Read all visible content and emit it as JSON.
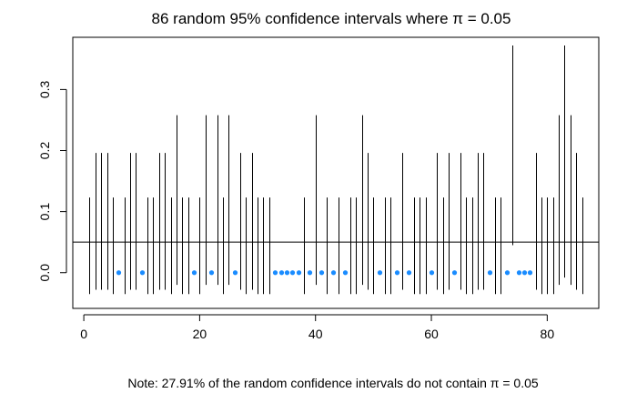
{
  "chart_data": {
    "type": "interval",
    "title": "86 random 95% confidence intervals where π = 0.05",
    "note": "Note: 27.91% of the random confidence intervals do not contain π = 0.05",
    "xlabel": "",
    "ylabel": "",
    "xlim": [
      -1.9,
      88.9
    ],
    "ylim": [
      -0.0585,
      0.3855
    ],
    "x_ticks": [
      {
        "value": 0,
        "label": "0"
      },
      {
        "value": 20,
        "label": "20"
      },
      {
        "value": 40,
        "label": "40"
      },
      {
        "value": 60,
        "label": "60"
      },
      {
        "value": 80,
        "label": "80"
      }
    ],
    "y_ticks": [
      {
        "value": 0.0,
        "label": "0.0"
      },
      {
        "value": 0.1,
        "label": "0.1"
      },
      {
        "value": 0.2,
        "label": "0.2"
      },
      {
        "value": 0.3,
        "label": "0.3"
      }
    ],
    "reference_line": 0.05,
    "grid": false,
    "interval_levels": {
      "A": [
        -0.035,
        0.123
      ],
      "B": [
        -0.028,
        0.196
      ],
      "C": [
        -0.02,
        0.258
      ],
      "D": [
        0.045,
        0.372
      ],
      "E": [
        -0.008,
        0.372
      ],
      "F": [
        -0.02,
        0.258
      ]
    },
    "intervals": [
      {
        "x": 1,
        "lvl": "A"
      },
      {
        "x": 2,
        "lvl": "B"
      },
      {
        "x": 3,
        "lvl": "B"
      },
      {
        "x": 4,
        "lvl": "B"
      },
      {
        "x": 5,
        "lvl": "A"
      },
      {
        "x": 6,
        "lvl": "Z"
      },
      {
        "x": 7,
        "lvl": "A"
      },
      {
        "x": 8,
        "lvl": "B"
      },
      {
        "x": 9,
        "lvl": "B"
      },
      {
        "x": 10,
        "lvl": "Z"
      },
      {
        "x": 11,
        "lvl": "A"
      },
      {
        "x": 12,
        "lvl": "A"
      },
      {
        "x": 13,
        "lvl": "B"
      },
      {
        "x": 14,
        "lvl": "B"
      },
      {
        "x": 15,
        "lvl": "A"
      },
      {
        "x": 16,
        "lvl": "C"
      },
      {
        "x": 17,
        "lvl": "A"
      },
      {
        "x": 18,
        "lvl": "A"
      },
      {
        "x": 19,
        "lvl": "Z"
      },
      {
        "x": 20,
        "lvl": "A"
      },
      {
        "x": 21,
        "lvl": "C"
      },
      {
        "x": 22,
        "lvl": "Z"
      },
      {
        "x": 23,
        "lvl": "C"
      },
      {
        "x": 24,
        "lvl": "A"
      },
      {
        "x": 25,
        "lvl": "C"
      },
      {
        "x": 26,
        "lvl": "Z"
      },
      {
        "x": 27,
        "lvl": "B"
      },
      {
        "x": 28,
        "lvl": "A"
      },
      {
        "x": 29,
        "lvl": "B"
      },
      {
        "x": 30,
        "lvl": "A"
      },
      {
        "x": 31,
        "lvl": "A"
      },
      {
        "x": 32,
        "lvl": "A"
      },
      {
        "x": 33,
        "lvl": "Z"
      },
      {
        "x": 34,
        "lvl": "Z"
      },
      {
        "x": 35,
        "lvl": "Z"
      },
      {
        "x": 36,
        "lvl": "Z"
      },
      {
        "x": 37,
        "lvl": "Z"
      },
      {
        "x": 38,
        "lvl": "A"
      },
      {
        "x": 39,
        "lvl": "Z"
      },
      {
        "x": 40,
        "lvl": "C"
      },
      {
        "x": 41,
        "lvl": "Z"
      },
      {
        "x": 42,
        "lvl": "A"
      },
      {
        "x": 43,
        "lvl": "Z"
      },
      {
        "x": 44,
        "lvl": "A"
      },
      {
        "x": 45,
        "lvl": "Z"
      },
      {
        "x": 46,
        "lvl": "A"
      },
      {
        "x": 47,
        "lvl": "A"
      },
      {
        "x": 48,
        "lvl": "C"
      },
      {
        "x": 49,
        "lvl": "B"
      },
      {
        "x": 50,
        "lvl": "A"
      },
      {
        "x": 51,
        "lvl": "Z"
      },
      {
        "x": 52,
        "lvl": "A"
      },
      {
        "x": 53,
        "lvl": "A"
      },
      {
        "x": 54,
        "lvl": "Z"
      },
      {
        "x": 55,
        "lvl": "B"
      },
      {
        "x": 56,
        "lvl": "Z"
      },
      {
        "x": 57,
        "lvl": "A"
      },
      {
        "x": 58,
        "lvl": "A"
      },
      {
        "x": 59,
        "lvl": "A"
      },
      {
        "x": 60,
        "lvl": "Z"
      },
      {
        "x": 61,
        "lvl": "B"
      },
      {
        "x": 62,
        "lvl": "A"
      },
      {
        "x": 63,
        "lvl": "B"
      },
      {
        "x": 64,
        "lvl": "Z"
      },
      {
        "x": 65,
        "lvl": "B"
      },
      {
        "x": 66,
        "lvl": "A"
      },
      {
        "x": 67,
        "lvl": "A"
      },
      {
        "x": 68,
        "lvl": "B"
      },
      {
        "x": 69,
        "lvl": "B"
      },
      {
        "x": 70,
        "lvl": "Z"
      },
      {
        "x": 71,
        "lvl": "A"
      },
      {
        "x": 72,
        "lvl": "A"
      },
      {
        "x": 73,
        "lvl": "Z"
      },
      {
        "x": 74,
        "lvl": "D"
      },
      {
        "x": 75,
        "lvl": "Z"
      },
      {
        "x": 76,
        "lvl": "Z"
      },
      {
        "x": 77,
        "lvl": "Z"
      },
      {
        "x": 78,
        "lvl": "B"
      },
      {
        "x": 79,
        "lvl": "A"
      },
      {
        "x": 80,
        "lvl": "A"
      },
      {
        "x": 81,
        "lvl": "A"
      },
      {
        "x": 82,
        "lvl": "C"
      },
      {
        "x": 83,
        "lvl": "E"
      },
      {
        "x": 84,
        "lvl": "F"
      },
      {
        "x": 85,
        "lvl": "B"
      },
      {
        "x": 86,
        "lvl": "A"
      }
    ],
    "zero_width_point_value": 0.0,
    "colors": {
      "interval": "#000000",
      "zero_width_point": "#1a8cff",
      "reference_line": "#000000",
      "axis": "#000000"
    }
  }
}
